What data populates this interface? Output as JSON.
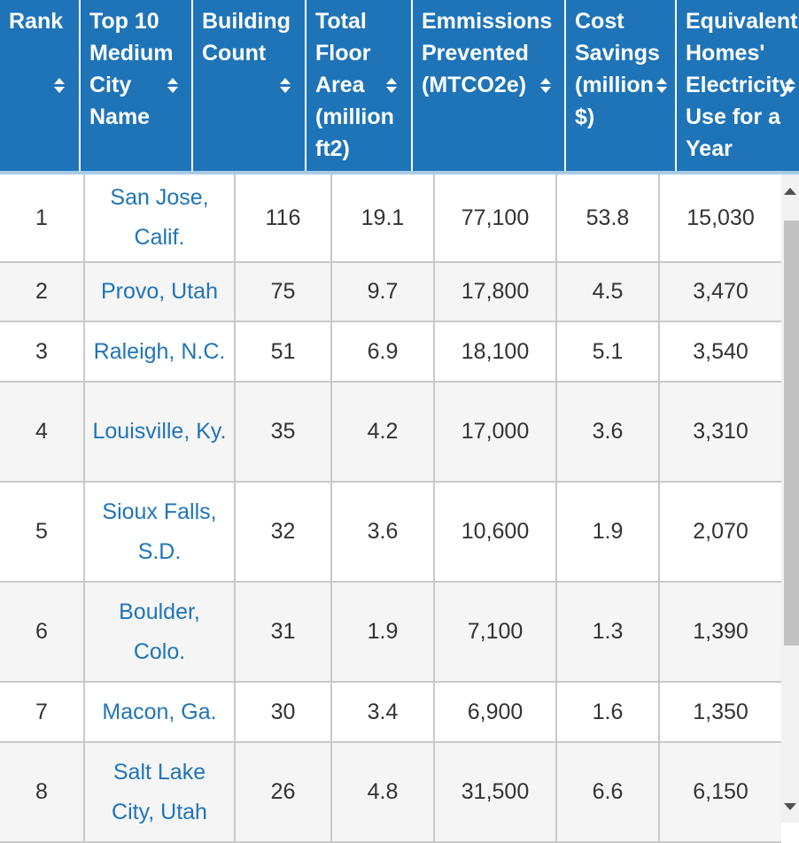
{
  "headers": [
    {
      "label": "Rank"
    },
    {
      "label": "Top 10 Medium City Name"
    },
    {
      "label": "Building Count"
    },
    {
      "label": "Total Floor Area (million ft2)"
    },
    {
      "label": "Emmissions Prevented (MTCO2e)"
    },
    {
      "label": "Cost Savings (million $)"
    },
    {
      "label": "Equivalent Homes' Electricity Use for a Year"
    }
  ],
  "rows": [
    {
      "rank": "1",
      "city": "San Jose, Calif.",
      "buildings": "116",
      "floor_area": "19.1",
      "emissions": "77,100",
      "cost": "53.8",
      "homes": "15,030"
    },
    {
      "rank": "2",
      "city": "Provo, Utah",
      "buildings": "75",
      "floor_area": "9.7",
      "emissions": "17,800",
      "cost": "4.5",
      "homes": "3,470"
    },
    {
      "rank": "3",
      "city": "Raleigh, N.C.",
      "buildings": "51",
      "floor_area": "6.9",
      "emissions": "18,100",
      "cost": "5.1",
      "homes": "3,540"
    },
    {
      "rank": "4",
      "city": "Louisville, Ky.",
      "buildings": "35",
      "floor_area": "4.2",
      "emissions": "17,000",
      "cost": "3.6",
      "homes": "3,310"
    },
    {
      "rank": "5",
      "city": "Sioux Falls, S.D.",
      "buildings": "32",
      "floor_area": "3.6",
      "emissions": "10,600",
      "cost": "1.9",
      "homes": "2,070"
    },
    {
      "rank": "6",
      "city": "Boulder, Colo.",
      "buildings": "31",
      "floor_area": "1.9",
      "emissions": "7,100",
      "cost": "1.3",
      "homes": "1,390"
    },
    {
      "rank": "7",
      "city": "Macon, Ga.",
      "buildings": "30",
      "floor_area": "3.4",
      "emissions": "6,900",
      "cost": "1.6",
      "homes": "1,350"
    },
    {
      "rank": "8",
      "city": "Salt Lake City, Utah",
      "buildings": "26",
      "floor_area": "4.8",
      "emissions": "31,500",
      "cost": "6.6",
      "homes": "6,150"
    }
  ],
  "colors": {
    "header_bg": "#1f74b8",
    "link": "#1f74b8"
  }
}
